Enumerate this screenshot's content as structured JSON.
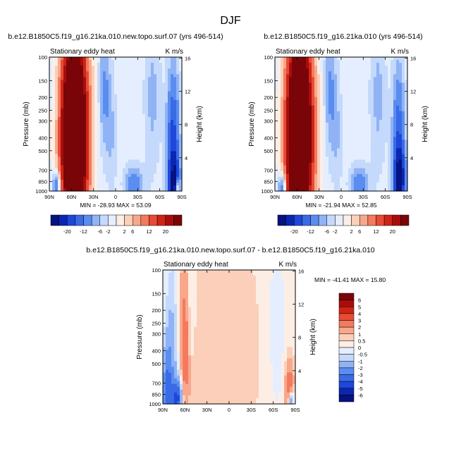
{
  "figure_title": "DJF",
  "chart_data": [
    {
      "type": "heatmap",
      "title": "b.e12.B1850C5.f19_g16.21ka.010.new.topo.surf.07 (yrs 496-514)",
      "left_subtitle": "Stationary eddy heat",
      "right_subtitle": "K m/s",
      "xlabel": "",
      "ylabel": "Pressure (mb)",
      "ylabel_right": "Height (km)",
      "x_tick_labels": [
        "90N",
        "60N",
        "30N",
        "0",
        "30S",
        "60S",
        "90S"
      ],
      "x_ticks": [
        90,
        60,
        30,
        0,
        -30,
        -60,
        -90
      ],
      "y_ticks": [
        100,
        150,
        200,
        250,
        300,
        400,
        500,
        700,
        850,
        1000
      ],
      "y_tick_labels": [
        "100",
        "150",
        "200",
        "250",
        "300",
        "400",
        "500",
        "700",
        "850",
        "1000"
      ],
      "height_ticks": [
        16,
        12,
        8,
        4
      ],
      "height_tick_labels": [
        "16",
        "12",
        "8",
        "4"
      ],
      "xlim": [
        90,
        -90
      ],
      "ylim": [
        1000,
        100
      ],
      "log_scale_y": true,
      "min": -28.93,
      "max": 53.09,
      "stats_text": "MIN = -28.93  MAX = 53.09",
      "features": [
        {
          "lat": 56,
          "p": 450,
          "value": 45,
          "lat_width": 11,
          "logp_width": 0.45
        },
        {
          "lat": 62,
          "p": 220,
          "value": 10,
          "lat_width": 9,
          "logp_width": 0.55
        },
        {
          "lat": 50,
          "p": 160,
          "value": 6,
          "lat_width": 8,
          "logp_width": 0.4
        },
        {
          "lat": 40,
          "p": 300,
          "value": 2,
          "lat_width": 12,
          "logp_width": 0.6
        },
        {
          "lat": 15,
          "p": 180,
          "value": -6,
          "lat_width": 6,
          "logp_width": 0.35
        },
        {
          "lat": 5,
          "p": 400,
          "value": -3,
          "lat_width": 5,
          "logp_width": 0.3
        },
        {
          "lat": -25,
          "p": 900,
          "value": -8,
          "lat_width": 9,
          "logp_width": 0.1
        },
        {
          "lat": -50,
          "p": 200,
          "value": -4,
          "lat_width": 8,
          "logp_width": 0.4
        },
        {
          "lat": -78,
          "p": 550,
          "value": -14,
          "lat_width": 6,
          "logp_width": 0.45
        },
        {
          "lat": -80,
          "p": 900,
          "value": -10,
          "lat_width": 5,
          "logp_width": 0.15
        },
        {
          "lat": 80,
          "p": 950,
          "value": -12,
          "lat_width": 4,
          "logp_width": 0.08
        },
        {
          "lat": -84,
          "p": 960,
          "value": 12,
          "lat_width": 2,
          "logp_width": 0.05
        }
      ],
      "background": -0.7
    },
    {
      "type": "heatmap",
      "title": "b.e12.B1850C5.f19_g16.21ka.010 (yrs 496-514)",
      "left_subtitle": "Stationary eddy heat",
      "right_subtitle": "K m/s",
      "xlabel": "",
      "ylabel": "Pressure (mb)",
      "ylabel_right": "Height (km)",
      "x_tick_labels": [
        "90N",
        "60N",
        "30N",
        "0",
        "30S",
        "60S",
        "90S"
      ],
      "x_ticks": [
        90,
        60,
        30,
        0,
        -30,
        -60,
        -90
      ],
      "y_ticks": [
        100,
        150,
        200,
        250,
        300,
        400,
        500,
        700,
        850,
        1000
      ],
      "y_tick_labels": [
        "100",
        "150",
        "200",
        "250",
        "300",
        "400",
        "500",
        "700",
        "850",
        "1000"
      ],
      "height_ticks": [
        16,
        12,
        8,
        4
      ],
      "height_tick_labels": [
        "16",
        "12",
        "8",
        "4"
      ],
      "xlim": [
        90,
        -90
      ],
      "ylim": [
        1000,
        100
      ],
      "log_scale_y": true,
      "min": -21.94,
      "max": 52.85,
      "stats_text": "MIN = -21.94  MAX = 52.85",
      "features": [
        {
          "lat": 57,
          "p": 450,
          "value": 45,
          "lat_width": 11,
          "logp_width": 0.45
        },
        {
          "lat": 62,
          "p": 220,
          "value": 10,
          "lat_width": 9,
          "logp_width": 0.55
        },
        {
          "lat": 50,
          "p": 160,
          "value": 6,
          "lat_width": 8,
          "logp_width": 0.4
        },
        {
          "lat": 40,
          "p": 300,
          "value": 2,
          "lat_width": 12,
          "logp_width": 0.6
        },
        {
          "lat": 15,
          "p": 180,
          "value": -6,
          "lat_width": 6,
          "logp_width": 0.35
        },
        {
          "lat": 5,
          "p": 400,
          "value": -3,
          "lat_width": 5,
          "logp_width": 0.3
        },
        {
          "lat": -25,
          "p": 900,
          "value": -8,
          "lat_width": 9,
          "logp_width": 0.1
        },
        {
          "lat": -50,
          "p": 200,
          "value": -4,
          "lat_width": 8,
          "logp_width": 0.4
        },
        {
          "lat": -78,
          "p": 550,
          "value": -12,
          "lat_width": 6,
          "logp_width": 0.45
        },
        {
          "lat": -80,
          "p": 820,
          "value": -14,
          "lat_width": 5,
          "logp_width": 0.15
        },
        {
          "lat": 80,
          "p": 950,
          "value": -10,
          "lat_width": 4,
          "logp_width": 0.08
        }
      ],
      "background": -0.7
    },
    {
      "type": "heatmap",
      "title": "b.e12.B1850C5.f19_g16.21ka.010.new.topo.surf.07 - b.e12.B1850C5.f19_g16.21ka.010",
      "left_subtitle": "Stationary eddy heat",
      "right_subtitle": "K m/s",
      "xlabel": "",
      "ylabel": "Pressure (mb)",
      "ylabel_right": "Height (km)",
      "x_tick_labels": [
        "90N",
        "60N",
        "30N",
        "0",
        "30S",
        "60S",
        "90S"
      ],
      "x_ticks": [
        90,
        60,
        30,
        0,
        -30,
        -60,
        -90
      ],
      "y_ticks": [
        100,
        150,
        200,
        250,
        300,
        400,
        500,
        700,
        850,
        1000
      ],
      "y_tick_labels": [
        "100",
        "150",
        "200",
        "250",
        "300",
        "400",
        "500",
        "700",
        "850",
        "1000"
      ],
      "height_ticks": [
        16,
        12,
        8,
        4
      ],
      "height_tick_labels": [
        "16",
        "12",
        "8",
        "4"
      ],
      "xlim": [
        90,
        -90
      ],
      "ylim": [
        1000,
        100
      ],
      "log_scale_y": true,
      "min": -41.41,
      "max": 15.8,
      "stats_text": "MIN = -41.41  MAX =  15.80",
      "features": [
        {
          "lat": 78,
          "p": 450,
          "value": -1.5,
          "lat_width": 7,
          "logp_width": 0.6
        },
        {
          "lat": 84,
          "p": 850,
          "value": -3,
          "lat_width": 5,
          "logp_width": 0.25
        },
        {
          "lat": 60,
          "p": 450,
          "value": 2.5,
          "lat_width": 4,
          "logp_width": 0.3
        },
        {
          "lat": 62,
          "p": 150,
          "value": 1,
          "lat_width": 5,
          "logp_width": 0.3
        },
        {
          "lat": 70,
          "p": 900,
          "value": -4,
          "lat_width": 5,
          "logp_width": 0.1
        },
        {
          "lat": 52,
          "p": 250,
          "value": -0.7,
          "lat_width": 5,
          "logp_width": 0.3
        },
        {
          "lat": 45,
          "p": 600,
          "value": 0.6,
          "lat_width": 10,
          "logp_width": 0.5
        },
        {
          "lat": 20,
          "p": 300,
          "value": 0.6,
          "lat_width": 12,
          "logp_width": 0.6
        },
        {
          "lat": -20,
          "p": 400,
          "value": 0.5,
          "lat_width": 15,
          "logp_width": 0.6
        },
        {
          "lat": -65,
          "p": 250,
          "value": -0.6,
          "lat_width": 8,
          "logp_width": 0.5
        },
        {
          "lat": -82,
          "p": 800,
          "value": 3,
          "lat_width": 4,
          "logp_width": 0.15
        },
        {
          "lat": -84,
          "p": 960,
          "value": -4,
          "lat_width": 3,
          "logp_width": 0.06
        }
      ],
      "background": 0.3
    }
  ],
  "colorbar_top": {
    "labels": [
      "-20",
      "-12",
      "-6",
      "-2",
      "2",
      "6",
      "12",
      "20"
    ],
    "colors": [
      "#06127f",
      "#0b26b0",
      "#1e48da",
      "#3a6be6",
      "#5a8df0",
      "#8fb3f5",
      "#c4d9fb",
      "#e4eefe",
      "#fdeee5",
      "#fbcfba",
      "#f8a88a",
      "#f37a5e",
      "#e84b35",
      "#cf2415",
      "#a80d0c",
      "#7a0508"
    ]
  },
  "colorbar_diff": {
    "labels": [
      "6",
      "5",
      "4",
      "3",
      "2",
      "1",
      "0.5",
      "0",
      "-0.5",
      "-1",
      "-2",
      "-3",
      "-4",
      "-5",
      "-6"
    ],
    "colors": [
      "#7a0508",
      "#a80d0c",
      "#cf2415",
      "#e84b35",
      "#f37a5e",
      "#f8a88a",
      "#fbcfba",
      "#fdeee5",
      "#e4eefe",
      "#c4d9fb",
      "#8fb3f5",
      "#5a8df0",
      "#3a6be6",
      "#1e48da",
      "#0b26b0",
      "#06127f"
    ]
  }
}
